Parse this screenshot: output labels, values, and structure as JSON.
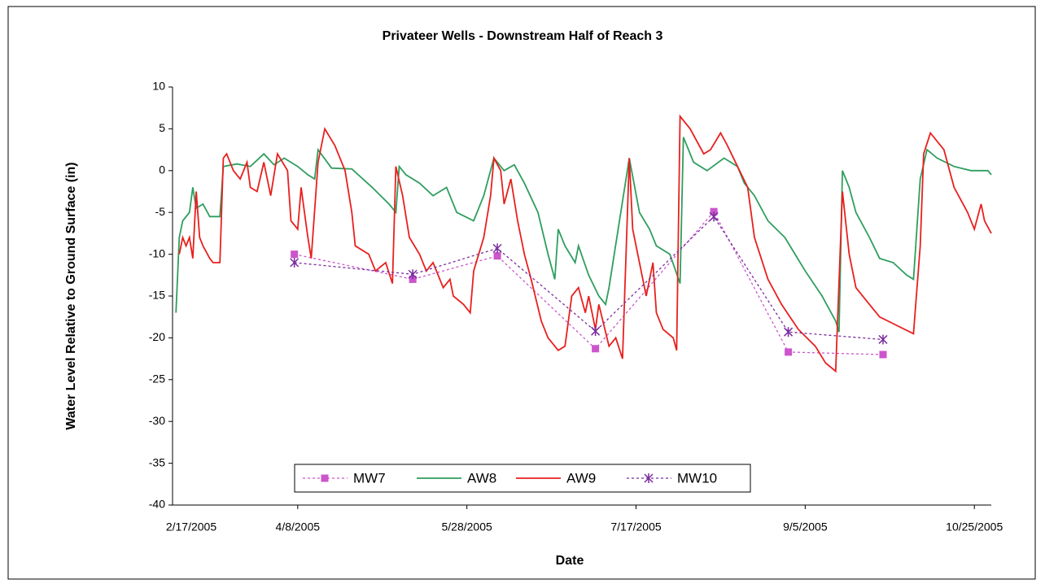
{
  "chart_data": {
    "type": "line",
    "title": "Privateer Wells - Downstream Half of Reach 3",
    "x_label": "Date",
    "y_label": "Water Level Relative to Ground Surface (in)",
    "xlim": [
      "3/2/2005",
      "10/30/2005"
    ],
    "xticks": [
      "2/17/2005",
      "4/8/2005",
      "5/28/2005",
      "7/17/2005",
      "9/5/2005",
      "10/25/2005"
    ],
    "ylim": [
      -40,
      10
    ],
    "yticks": [
      -40,
      -35,
      -30,
      -25,
      -20,
      -15,
      -10,
      -5,
      0,
      5,
      10
    ],
    "series": [
      {
        "name": "MW7",
        "color": "#cc55cc",
        "marker": "square",
        "dashed": true,
        "x": [
          "4/7/2005",
          "5/12/2005",
          "6/6/2005",
          "7/5/2005",
          "8/9/2005",
          "8/31/2005",
          "9/28/2005"
        ],
        "values": [
          -10,
          -13,
          -10.2,
          -21.3,
          -4.9,
          -21.7,
          -22
        ]
      },
      {
        "name": "AW8",
        "color": "#2e9e5e",
        "marker": "none",
        "dashed": false,
        "x": [
          "3/3/2005",
          "3/4/2005",
          "3/5/2005",
          "3/7/2005",
          "3/8/2005",
          "3/9/2005",
          "3/11/2005",
          "3/13/2005",
          "3/16/2005",
          "3/17/2005",
          "3/21/2005",
          "3/25/2005",
          "3/29/2005",
          "4/1/2005",
          "4/4/2005",
          "4/8/2005",
          "4/11/2005",
          "4/13/2005",
          "4/14/2005",
          "4/18/2005",
          "4/24/2005",
          "4/30/2005",
          "5/5/2005",
          "5/7/2005",
          "5/8/2005",
          "5/10/2005",
          "5/14/2005",
          "5/18/2005",
          "5/22/2005",
          "5/25/2005",
          "5/30/2005",
          "6/2/2005",
          "6/5/2005",
          "6/8/2005",
          "6/11/2005",
          "6/14/2005",
          "6/18/2005",
          "6/21/2005",
          "6/23/2005",
          "6/24/2005",
          "6/26/2005",
          "6/29/2005",
          "6/30/2005",
          "7/3/2005",
          "7/6/2005",
          "7/8/2005",
          "7/9/2005",
          "7/15/2005",
          "7/18/2005",
          "7/21/2005",
          "7/23/2005",
          "7/27/2005",
          "7/30/2005",
          "7/31/2005",
          "8/3/2005",
          "8/7/2005",
          "8/12/2005",
          "8/16/2005",
          "8/18/2005",
          "8/21/2005",
          "8/25/2005",
          "8/30/2005",
          "9/2/2005",
          "9/5/2005",
          "9/10/2005",
          "9/14/2005",
          "9/15/2005",
          "9/16/2005",
          "9/18/2005",
          "9/20/2005",
          "9/24/2005",
          "9/27/2005",
          "10/1/2005",
          "10/5/2005",
          "10/7/2005",
          "10/9/2005",
          "10/11/2005",
          "10/14/2005",
          "10/19/2005",
          "10/24/2005",
          "10/29/2005",
          "10/30/2005"
        ],
        "values": [
          -17,
          -8,
          -6,
          -5,
          -2,
          -4.5,
          -4,
          -5.5,
          -5.5,
          0.5,
          0.8,
          0.5,
          2,
          0.7,
          1.5,
          0.5,
          -0.5,
          -1,
          2.5,
          0.3,
          0.2,
          -2,
          -4,
          -5,
          0.5,
          -0.5,
          -1.5,
          -3,
          -2,
          -5,
          -6,
          -3,
          1.5,
          0,
          0.7,
          -1.5,
          -5,
          -10,
          -13,
          -7,
          -9,
          -11,
          -9,
          -12.5,
          -15,
          -16,
          -14,
          1.5,
          -5,
          -7,
          -9,
          -10,
          -13.5,
          4,
          1,
          0,
          1.5,
          0.5,
          -1.5,
          -3,
          -6,
          -8,
          -10,
          -12,
          -15,
          -18,
          -19.3,
          0,
          -2,
          -5,
          -8,
          -10.5,
          -11,
          -12.5,
          -13,
          -1,
          2.5,
          1.5,
          0.5,
          0,
          0,
          -0.5
        ]
      },
      {
        "name": "AW9",
        "color": "#e8201e",
        "marker": "none",
        "dashed": false,
        "x": [
          "3/4/2005",
          "3/5/2005",
          "3/6/2005",
          "3/7/2005",
          "3/8/2005",
          "3/9/2005",
          "3/10/2005",
          "3/11/2005",
          "3/13/2005",
          "3/14/2005",
          "3/16/2005",
          "3/17/2005",
          "3/18/2005",
          "3/20/2005",
          "3/22/2005",
          "3/24/2005",
          "3/25/2005",
          "3/27/2005",
          "3/29/2005",
          "3/31/2005",
          "4/2/2005",
          "4/5/2005",
          "4/6/2005",
          "4/8/2005",
          "4/9/2005",
          "4/10/2005",
          "4/11/2005",
          "4/12/2005",
          "4/14/2005",
          "4/16/2005",
          "4/19/2005",
          "4/22/2005",
          "4/24/2005",
          "4/25/2005",
          "4/29/2005",
          "5/1/2005",
          "5/4/2005",
          "5/6/2005",
          "5/7/2005",
          "5/9/2005",
          "5/11/2005",
          "5/14/2005",
          "5/16/2005",
          "5/18/2005",
          "5/21/2005",
          "5/23/2005",
          "5/24/2005",
          "5/27/2005",
          "5/29/2005",
          "5/30/2005",
          "6/2/2005",
          "6/4/2005",
          "6/5/2005",
          "6/7/2005",
          "6/8/2005",
          "6/10/2005",
          "6/12/2005",
          "6/14/2005",
          "6/16/2005",
          "6/19/2005",
          "6/21/2005",
          "6/24/2005",
          "6/26/2005",
          "6/28/2005",
          "6/30/2005",
          "7/2/2005",
          "7/3/2005",
          "7/5/2005",
          "7/6/2005",
          "7/9/2005",
          "7/11/2005",
          "7/13/2005",
          "7/15/2005",
          "7/16/2005",
          "7/18/2005",
          "7/20/2005",
          "7/22/2005",
          "7/23/2005",
          "7/25/2005",
          "7/28/2005",
          "7/29/2005",
          "7/30/2005",
          "8/2/2005",
          "8/6/2005",
          "8/8/2005",
          "8/11/2005",
          "8/13/2005",
          "8/16/2005",
          "8/19/2005",
          "8/21/2005",
          "8/25/2005",
          "8/29/2005",
          "9/3/2005",
          "9/8/2005",
          "9/11/2005",
          "9/14/2005",
          "9/16/2005",
          "9/18/2005",
          "9/20/2005",
          "9/24/2005",
          "9/27/2005",
          "10/2/2005",
          "10/7/2005",
          "10/9/2005",
          "10/10/2005",
          "10/12/2005",
          "10/16/2005",
          "10/19/2005",
          "10/23/2005",
          "10/25/2005",
          "10/27/2005",
          "10/28/2005",
          "10/30/2005"
        ],
        "values": [
          -10,
          -8,
          -9,
          -8,
          -10.5,
          -2.5,
          -8,
          -9,
          -10.5,
          -11,
          -11,
          1.5,
          2,
          0,
          -1,
          1,
          -2,
          -2.5,
          1,
          -3,
          2,
          0,
          -6,
          -7,
          -2,
          -5,
          -8,
          -10.5,
          1,
          5,
          3,
          0,
          -5,
          -9,
          -10,
          -12,
          -11,
          -13.5,
          0.5,
          -3,
          -8,
          -10,
          -12,
          -11,
          -14,
          -13,
          -15,
          -16,
          -17,
          -12,
          -8,
          -3,
          1.5,
          0,
          -4,
          -1,
          -6,
          -10,
          -13,
          -18,
          -20,
          -21.5,
          -21,
          -15,
          -14,
          -17,
          -15,
          -19,
          -16,
          -21,
          -20,
          -22.5,
          1.5,
          -7,
          -11,
          -15,
          -11,
          -17,
          -19,
          -20,
          -21.5,
          6.5,
          5,
          2,
          2.5,
          4.5,
          3,
          0.5,
          -2,
          -8,
          -13,
          -16,
          -19,
          -21,
          -23,
          -24,
          -2.5,
          -10,
          -14,
          -16,
          -17.5,
          -18.5,
          -19.5,
          -9,
          2,
          4.5,
          2.5,
          -2,
          -5,
          -7,
          -4,
          -6,
          -7.5
        ]
      },
      {
        "name": "MW10",
        "color": "#7a2c9e",
        "marker": "star",
        "dashed": true,
        "x": [
          "4/7/2005",
          "5/12/2005",
          "6/6/2005",
          "7/5/2005",
          "8/9/2005",
          "8/31/2005",
          "9/28/2005"
        ],
        "values": [
          -11,
          -12.4,
          -9.3,
          -19.2,
          -5.5,
          -19.3,
          -20.2
        ]
      }
    ]
  }
}
